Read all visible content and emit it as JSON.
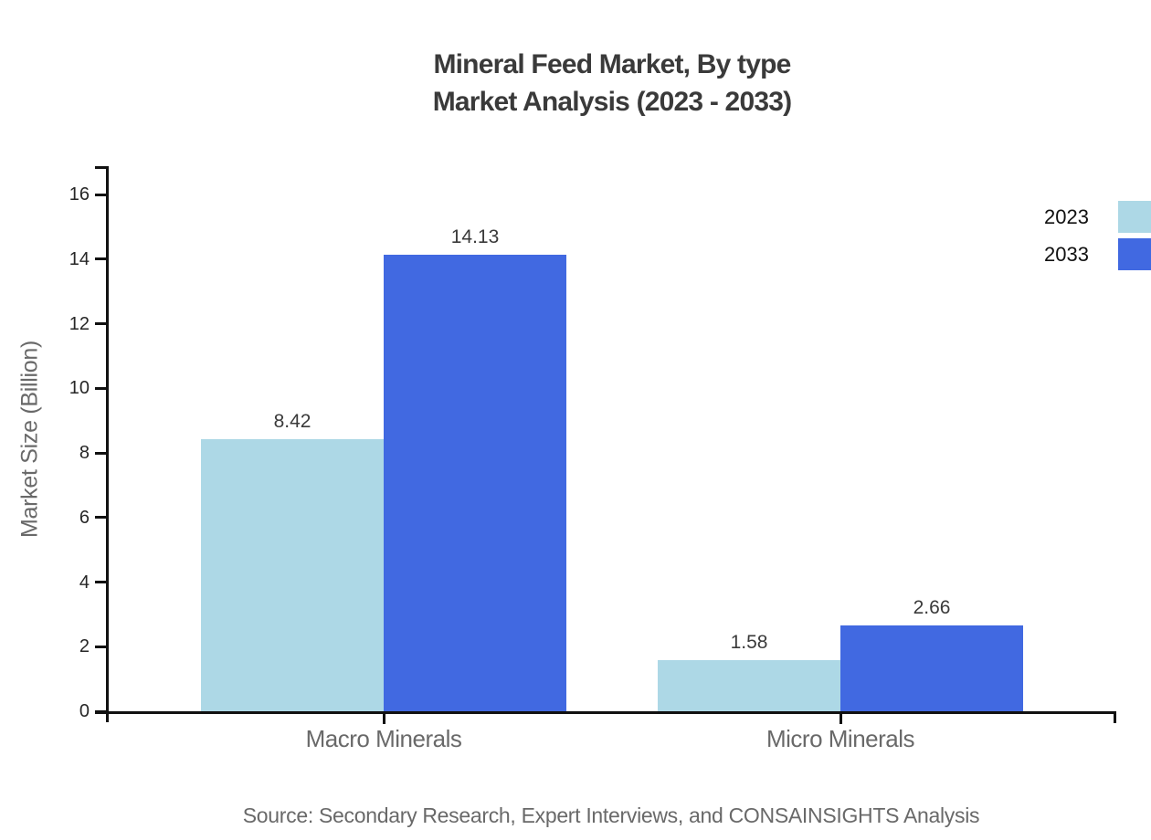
{
  "header": {
    "title_line1": "Mineral Feed Market, By type",
    "title_line2": "Market Analysis (2023 - 2033)"
  },
  "footer": {
    "source": "Source: Secondary Research, Expert Interviews, and CONSAINSIGHTS Analysis"
  },
  "chart_data": {
    "type": "bar",
    "title": "Mineral Feed Market, By type Market Analysis (2023 - 2033)",
    "categories": [
      "Macro Minerals",
      "Micro Minerals"
    ],
    "series": [
      {
        "name": "2023",
        "values": [
          8.42,
          1.58
        ],
        "color": "#add8e6"
      },
      {
        "name": "2033",
        "values": [
          14.13,
          2.66
        ],
        "color": "#4169e1"
      }
    ],
    "xlabel": "",
    "ylabel": "Market Size (Billion)",
    "yticks": [
      0,
      2,
      4,
      6,
      8,
      10,
      12,
      14,
      16
    ],
    "ylim": [
      0,
      17
    ],
    "grid": false,
    "legend_position": "top-right",
    "colors": {
      "axis": "#111111",
      "tick_label": "#262626",
      "value_label": "#3a3a3a",
      "muted_text": "#696969"
    }
  }
}
